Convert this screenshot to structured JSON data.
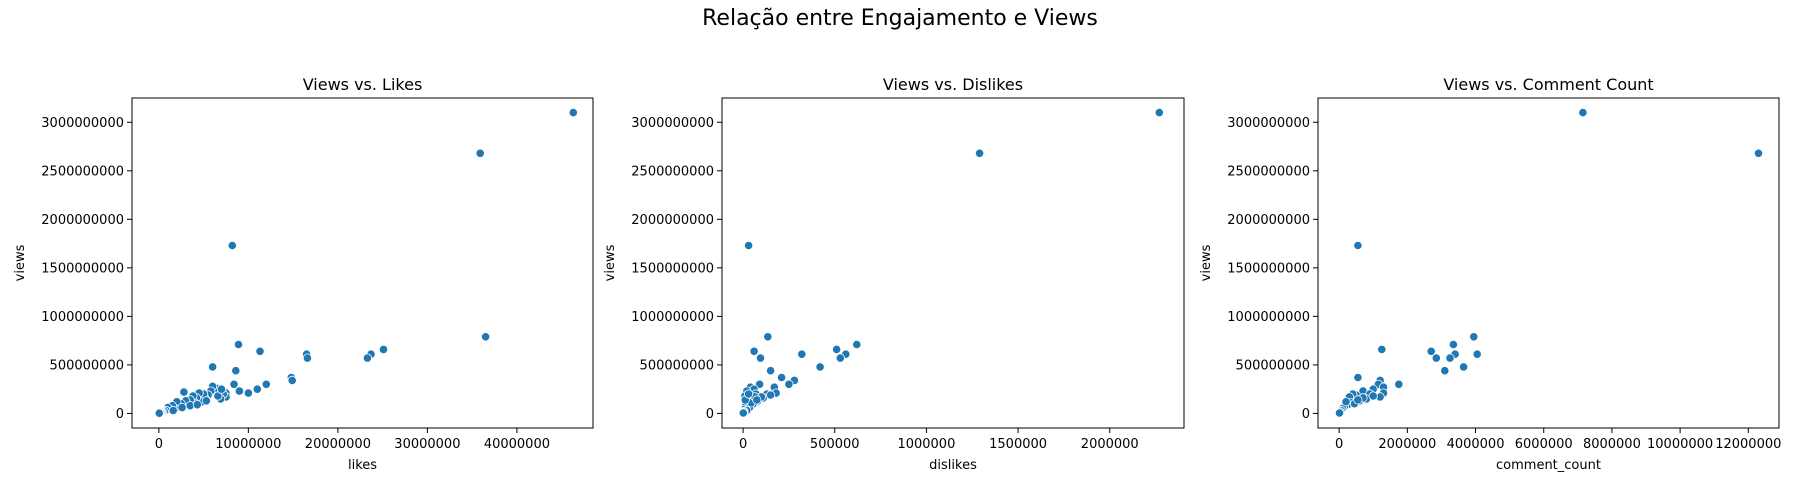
{
  "figure": {
    "suptitle": "Relação entre Engajamento e Views",
    "marker_color": "#1f77b4"
  },
  "chart_data": [
    {
      "type": "scatter",
      "title": "Views vs. Likes",
      "xlabel": "likes",
      "ylabel": "views",
      "xlim": [
        -3000000,
        48500000
      ],
      "ylim": [
        -150000000,
        3250000000
      ],
      "xticks": [
        0,
        10000000,
        20000000,
        30000000,
        40000000
      ],
      "xtick_labels": [
        "0",
        "10000000",
        "20000000",
        "30000000",
        "40000000"
      ],
      "yticks": [
        0,
        500000000,
        1000000000,
        1500000000,
        2000000000,
        2500000000,
        3000000000
      ],
      "ytick_labels": [
        "0",
        "500000000",
        "1000000000",
        "1500000000",
        "2000000000",
        "2500000000",
        "3000000000"
      ],
      "grid": false,
      "points": [
        [
          46300000,
          3100000000
        ],
        [
          35900000,
          2680000000
        ],
        [
          8200000,
          1730000000
        ],
        [
          36500000,
          790000000
        ],
        [
          25100000,
          660000000
        ],
        [
          23700000,
          610000000
        ],
        [
          23300000,
          570000000
        ],
        [
          16500000,
          610000000
        ],
        [
          16600000,
          570000000
        ],
        [
          8900000,
          710000000
        ],
        [
          11300000,
          640000000
        ],
        [
          14800000,
          370000000
        ],
        [
          14900000,
          340000000
        ],
        [
          12000000,
          300000000
        ],
        [
          11000000,
          250000000
        ],
        [
          10000000,
          210000000
        ],
        [
          9000000,
          230000000
        ],
        [
          8600000,
          440000000
        ],
        [
          8400000,
          300000000
        ],
        [
          6000000,
          480000000
        ],
        [
          7500000,
          210000000
        ],
        [
          7500000,
          170000000
        ],
        [
          7200000,
          200000000
        ],
        [
          6900000,
          150000000
        ],
        [
          6400000,
          260000000
        ],
        [
          6000000,
          280000000
        ],
        [
          5800000,
          230000000
        ],
        [
          5500000,
          190000000
        ],
        [
          5200000,
          150000000
        ],
        [
          5000000,
          200000000
        ],
        [
          4800000,
          120000000
        ],
        [
          4500000,
          210000000
        ],
        [
          4200000,
          160000000
        ],
        [
          4000000,
          110000000
        ],
        [
          3800000,
          180000000
        ],
        [
          3500000,
          140000000
        ],
        [
          3200000,
          90000000
        ],
        [
          3000000,
          130000000
        ],
        [
          2800000,
          220000000
        ],
        [
          2500000,
          100000000
        ],
        [
          2200000,
          70000000
        ],
        [
          2000000,
          120000000
        ],
        [
          1800000,
          50000000
        ],
        [
          1500000,
          80000000
        ],
        [
          1200000,
          40000000
        ],
        [
          1000000,
          60000000
        ],
        [
          800000,
          30000000
        ],
        [
          600000,
          20000000
        ],
        [
          400000,
          15000000
        ],
        [
          300000,
          10000000
        ],
        [
          200000,
          8000000
        ],
        [
          100000,
          5000000
        ],
        [
          50000,
          2000000
        ],
        [
          3500000,
          80000000
        ],
        [
          2600000,
          60000000
        ],
        [
          1600000,
          30000000
        ],
        [
          6600000,
          180000000
        ],
        [
          5300000,
          130000000
        ],
        [
          4300000,
          90000000
        ],
        [
          7000000,
          250000000
        ]
      ]
    },
    {
      "type": "scatter",
      "title": "Views vs. Dislikes",
      "xlabel": "dislikes",
      "ylabel": "views",
      "xlim": [
        -115000,
        2405000
      ],
      "ylim": [
        -150000000,
        3250000000
      ],
      "xticks": [
        0,
        500000,
        1000000,
        1500000,
        2000000
      ],
      "xtick_labels": [
        "0",
        "500000",
        "1000000",
        "1500000",
        "2000000"
      ],
      "yticks": [
        0,
        500000000,
        1000000000,
        1500000000,
        2000000000,
        2500000000,
        3000000000
      ],
      "ytick_labels": [
        "0",
        "500000000",
        "1000000000",
        "1500000000",
        "2000000000",
        "2500000000",
        "3000000000"
      ],
      "grid": false,
      "points": [
        [
          2270000,
          3100000000
        ],
        [
          1290000,
          2680000000
        ],
        [
          30000,
          1730000000
        ],
        [
          135000,
          790000000
        ],
        [
          620000,
          710000000
        ],
        [
          510000,
          660000000
        ],
        [
          60000,
          640000000
        ],
        [
          560000,
          610000000
        ],
        [
          320000,
          610000000
        ],
        [
          530000,
          570000000
        ],
        [
          95000,
          570000000
        ],
        [
          420000,
          480000000
        ],
        [
          150000,
          440000000
        ],
        [
          210000,
          370000000
        ],
        [
          280000,
          340000000
        ],
        [
          250000,
          300000000
        ],
        [
          90000,
          300000000
        ],
        [
          40000,
          270000000
        ],
        [
          170000,
          270000000
        ],
        [
          60000,
          250000000
        ],
        [
          20000,
          230000000
        ],
        [
          180000,
          210000000
        ],
        [
          130000,
          200000000
        ],
        [
          70000,
          200000000
        ],
        [
          10000,
          180000000
        ],
        [
          110000,
          160000000
        ],
        [
          40000,
          150000000
        ],
        [
          80000,
          130000000
        ],
        [
          25000,
          120000000
        ],
        [
          55000,
          100000000
        ],
        [
          15000,
          80000000
        ],
        [
          35000,
          60000000
        ],
        [
          8000,
          40000000
        ],
        [
          20000,
          30000000
        ],
        [
          5000,
          20000000
        ],
        [
          3000,
          10000000
        ],
        [
          1000,
          5000000
        ],
        [
          45000,
          110000000
        ],
        [
          100000,
          170000000
        ],
        [
          150000,
          190000000
        ],
        [
          65000,
          170000000
        ],
        [
          12000,
          140000000
        ],
        [
          30000,
          200000000
        ],
        [
          75000,
          140000000
        ]
      ]
    },
    {
      "type": "scatter",
      "title": "Views vs. Comment Count",
      "xlabel": "comment_count",
      "ylabel": "views",
      "xlim": [
        -620000,
        12900000
      ],
      "ylim": [
        -150000000,
        3250000000
      ],
      "xticks": [
        0,
        2000000,
        4000000,
        6000000,
        8000000,
        10000000,
        12000000
      ],
      "xtick_labels": [
        "0",
        "2000000",
        "4000000",
        "6000000",
        "8000000",
        "10000000",
        "12000000"
      ],
      "yticks": [
        0,
        500000000,
        1000000000,
        1500000000,
        2000000000,
        2500000000,
        3000000000
      ],
      "ytick_labels": [
        "0",
        "500000000",
        "1000000000",
        "1500000000",
        "2000000000",
        "2500000000",
        "3000000000"
      ],
      "grid": false,
      "points": [
        [
          7150000,
          3100000000
        ],
        [
          12300000,
          2680000000
        ],
        [
          550000,
          1730000000
        ],
        [
          3950000,
          790000000
        ],
        [
          3350000,
          710000000
        ],
        [
          2700000,
          640000000
        ],
        [
          1250000,
          660000000
        ],
        [
          4050000,
          610000000
        ],
        [
          3400000,
          610000000
        ],
        [
          3250000,
          570000000
        ],
        [
          2850000,
          570000000
        ],
        [
          3650000,
          480000000
        ],
        [
          3100000,
          440000000
        ],
        [
          550000,
          370000000
        ],
        [
          1200000,
          340000000
        ],
        [
          1750000,
          300000000
        ],
        [
          1150000,
          300000000
        ],
        [
          1300000,
          270000000
        ],
        [
          1000000,
          250000000
        ],
        [
          700000,
          230000000
        ],
        [
          1300000,
          210000000
        ],
        [
          900000,
          200000000
        ],
        [
          500000,
          190000000
        ],
        [
          400000,
          200000000
        ],
        [
          300000,
          170000000
        ],
        [
          1200000,
          170000000
        ],
        [
          800000,
          150000000
        ],
        [
          600000,
          130000000
        ],
        [
          350000,
          110000000
        ],
        [
          250000,
          90000000
        ],
        [
          150000,
          70000000
        ],
        [
          100000,
          50000000
        ],
        [
          60000,
          30000000
        ],
        [
          30000,
          15000000
        ],
        [
          10000,
          5000000
        ],
        [
          450000,
          100000000
        ],
        [
          700000,
          160000000
        ],
        [
          1000000,
          180000000
        ],
        [
          200000,
          120000000
        ],
        [
          550000,
          140000000
        ]
      ]
    }
  ]
}
